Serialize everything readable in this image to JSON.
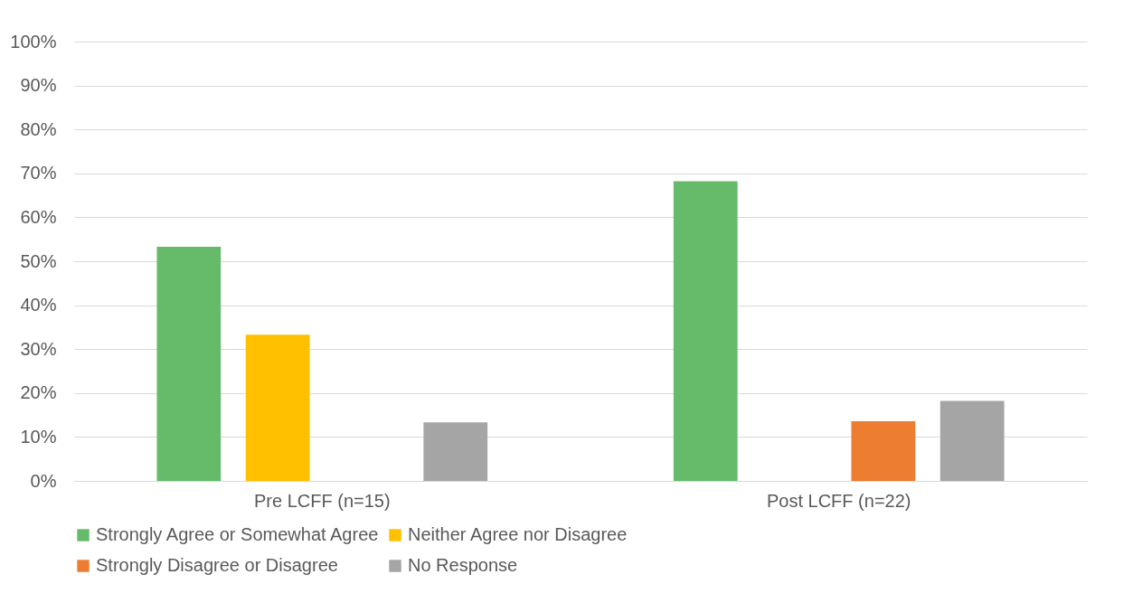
{
  "chart_data": {
    "type": "bar",
    "categories": [
      "Pre LCFF (n=15)",
      "Post LCFF (n=22)"
    ],
    "series": [
      {
        "name": "Strongly Agree or Somewhat Agree",
        "color": "#66bb6a",
        "values": [
          53.3,
          68.2
        ]
      },
      {
        "name": "Neither Agree nor Disagree",
        "color": "#ffc000",
        "values": [
          33.3,
          null
        ]
      },
      {
        "name": "Strongly Disagree or Disagree",
        "color": "#ed7d31",
        "values": [
          null,
          13.6
        ]
      },
      {
        "name": "No Response",
        "color": "#a5a5a5",
        "values": [
          13.3,
          18.2
        ]
      }
    ],
    "ylim": [
      0,
      100
    ],
    "yticks": [
      {
        "value": 0,
        "label": "0%"
      },
      {
        "value": 10,
        "label": "10%"
      },
      {
        "value": 20,
        "label": "20%"
      },
      {
        "value": 30,
        "label": "30%"
      },
      {
        "value": 40,
        "label": "40%"
      },
      {
        "value": 50,
        "label": "50%"
      },
      {
        "value": 60,
        "label": "60%"
      },
      {
        "value": 70,
        "label": "70%"
      },
      {
        "value": 80,
        "label": "80%"
      },
      {
        "value": 90,
        "label": "90%"
      },
      {
        "value": 100,
        "label": "100%"
      }
    ],
    "grid": "y",
    "legend": "bottom"
  }
}
